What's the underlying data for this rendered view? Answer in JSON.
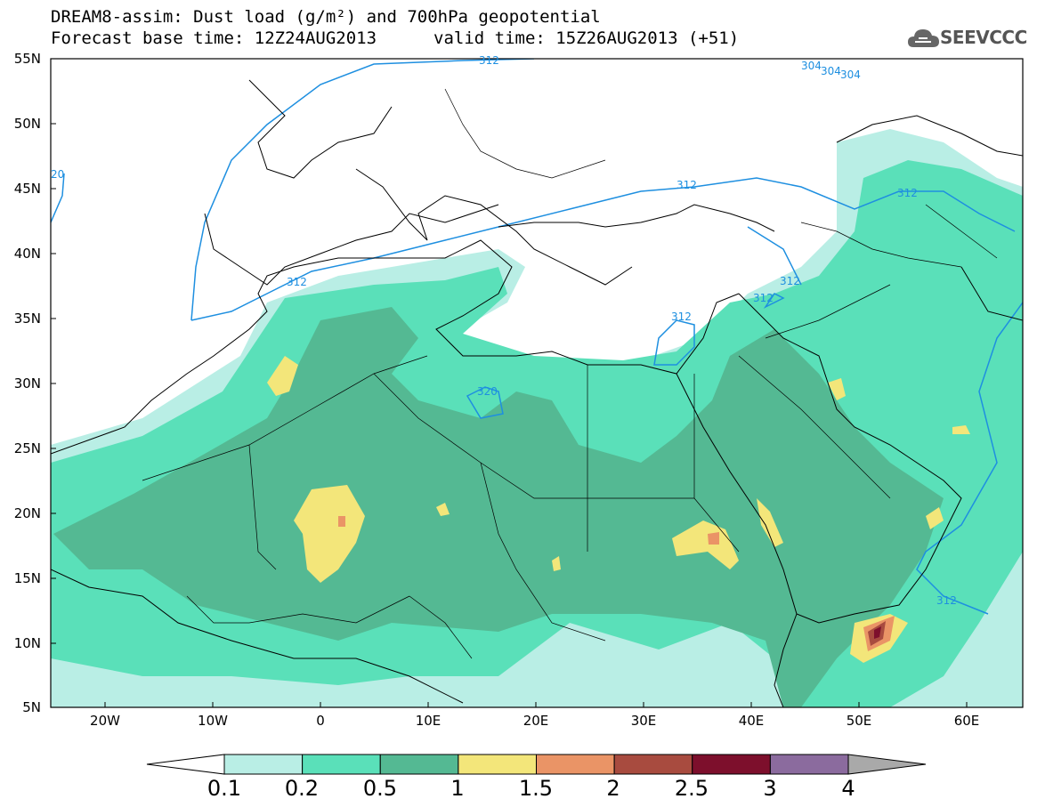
{
  "title": {
    "line1": "DREAM8-assim: Dust load (g/m²) and 700hPa geopotential",
    "line2": "Forecast base time: 12Z24AUG2013",
    "valid": "valid time: 15Z26AUG2013 (+51)"
  },
  "logo": {
    "text": "SEEVCCC",
    "icon": "cloud-logo-icon"
  },
  "map": {
    "lat_labels": [
      "55N",
      "50N",
      "45N",
      "40N",
      "35N",
      "30N",
      "25N",
      "20N",
      "15N",
      "10N",
      "5N"
    ],
    "lon_labels": [
      "20W",
      "10W",
      "0",
      "10E",
      "20E",
      "30E",
      "40E",
      "50E",
      "60E"
    ],
    "contour_labels": [
      "312",
      "304",
      "304",
      "304",
      "20",
      "312",
      "312",
      "312",
      "312",
      "312",
      "312",
      "320",
      "312"
    ],
    "colors": {
      "level_0_1": "#b9eee5",
      "level_0_2": "#5ae0b9",
      "level_0_5": "#54b993",
      "level_1": "#f3e67a",
      "level_1_5": "#ea9466",
      "level_2": "#a84b3f",
      "level_2_5": "#7d0f2c",
      "level_3": "#8b6b9e",
      "level_4": "#a9a9a9",
      "contour": "#1e8fe0"
    }
  },
  "colorbar": {
    "labels": [
      "0.1",
      "0.2",
      "0.5",
      "1",
      "1.5",
      "2",
      "2.5",
      "3",
      "4"
    ],
    "colors": [
      "#b9eee5",
      "#5ae0b9",
      "#54b993",
      "#f3e67a",
      "#ea9466",
      "#a84b3f",
      "#7d0f2c",
      "#8b6b9e"
    ]
  }
}
